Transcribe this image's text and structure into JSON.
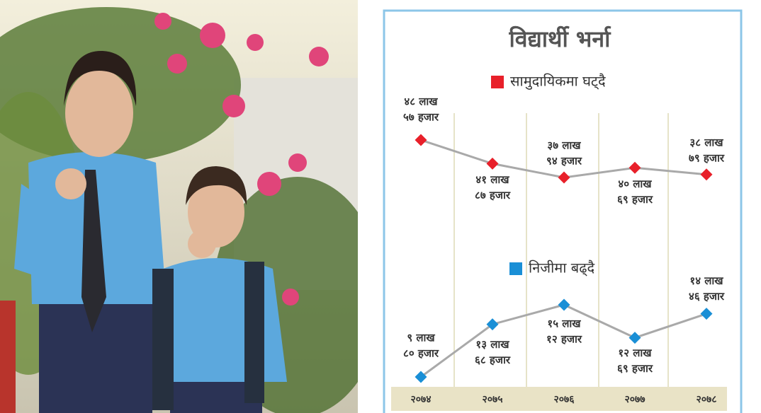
{
  "chart_data": {
    "type": "line",
    "title": "विद्यार्थी भर्ना",
    "categories": [
      "२०७४",
      "२०७५",
      "२०७६",
      "२०७७",
      "२०७८"
    ],
    "series": [
      {
        "name": "सामुदायिकमा घट्दै",
        "color": "#e8202a",
        "values": [
          4857000,
          4187000,
          3794000,
          4069000,
          3879000
        ],
        "value_labels": [
          [
            "४८ लाख",
            "५७ हजार"
          ],
          [
            "४१ लाख",
            "८७ हजार"
          ],
          [
            "३७ लाख",
            "९४ हजार"
          ],
          [
            "४० लाख",
            "६९ हजार"
          ],
          [
            "३८ लाख",
            "७९ हजार"
          ]
        ]
      },
      {
        "name": "निजीमा बढ्दै",
        "color": "#1a8fd6",
        "values": [
          980000,
          1368000,
          1512000,
          1269000,
          1446000
        ],
        "value_labels": [
          [
            "९ लाख",
            "८० हजार"
          ],
          [
            "१३ लाख",
            "६८ हजार"
          ],
          [
            "१५ लाख",
            "१२ हजार"
          ],
          [
            "१२ लाख",
            "६९ हजार"
          ],
          [
            "१४ लाख",
            "४६ हजार"
          ]
        ]
      }
    ]
  }
}
